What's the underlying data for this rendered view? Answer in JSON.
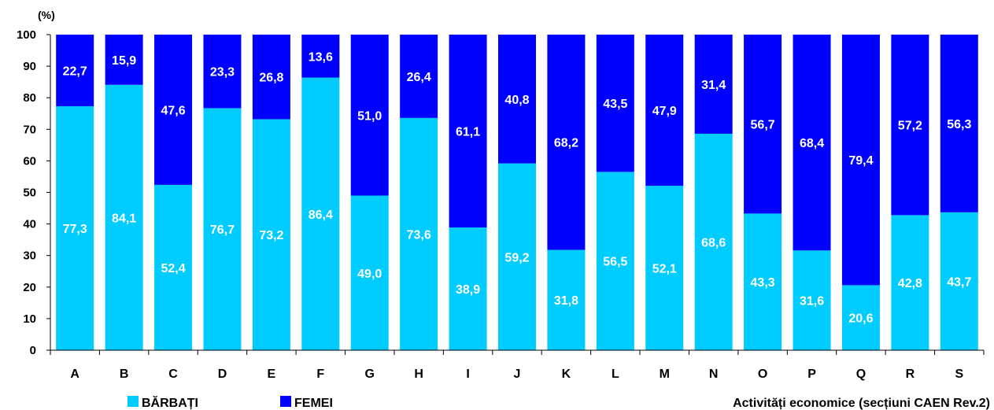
{
  "chart_data": {
    "type": "bar",
    "stacked": true,
    "unit_label": "(%)",
    "xlabel": "Activități economice (secțiuni CAEN Rev.2)",
    "ylabel": "",
    "ylim": [
      0,
      100
    ],
    "yticks": [
      0,
      10,
      20,
      30,
      40,
      50,
      60,
      70,
      80,
      90,
      100
    ],
    "grid": false,
    "legend_position": "bottom-left",
    "categories": [
      "A",
      "B",
      "C",
      "D",
      "E",
      "F",
      "G",
      "H",
      "I",
      "J",
      "K",
      "L",
      "M",
      "N",
      "O",
      "P",
      "Q",
      "R",
      "S"
    ],
    "series": [
      {
        "name": "BĂRBAȚI",
        "color": "#00ccff",
        "values": [
          77.3,
          84.1,
          52.4,
          76.7,
          73.2,
          86.4,
          49.0,
          73.6,
          38.9,
          59.2,
          31.8,
          56.5,
          52.1,
          68.6,
          43.3,
          31.6,
          20.6,
          42.8,
          43.7
        ],
        "labels": [
          "77,3",
          "84,1",
          "52,4",
          "76,7",
          "73,2",
          "86,4",
          "49,0",
          "73,6",
          "38,9",
          "59,2",
          "31,8",
          "56,5",
          "52,1",
          "68,6",
          "43,3",
          "31,6",
          "20,6",
          "42,8",
          "43,7"
        ]
      },
      {
        "name": "FEMEI",
        "color": "#0000ff",
        "values": [
          22.7,
          15.9,
          47.6,
          23.3,
          26.8,
          13.6,
          51.0,
          26.4,
          61.1,
          40.8,
          68.2,
          43.5,
          47.9,
          31.4,
          56.7,
          68.4,
          79.4,
          57.2,
          56.3
        ],
        "labels": [
          "22,7",
          "15,9",
          "47,6",
          "23,3",
          "26,8",
          "13,6",
          "51,0",
          "26,4",
          "61,1",
          "40,8",
          "68,2",
          "43,5",
          "47,9",
          "31,4",
          "56,7",
          "68,4",
          "79,4",
          "57,2",
          "56,3"
        ]
      }
    ]
  }
}
